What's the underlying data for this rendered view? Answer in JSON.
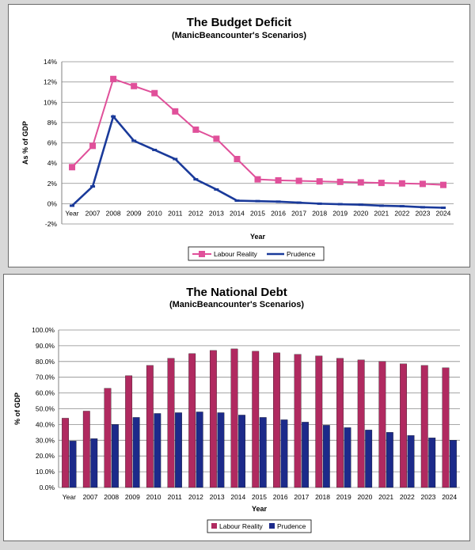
{
  "chart_data": [
    {
      "type": "line",
      "title": "The Budget Deficit",
      "subtitle": "(ManicBeancounter's Scenarios)",
      "xlabel": "Year",
      "ylabel": "As % of GDP",
      "categories": [
        "Year",
        "2007",
        "2008",
        "2009",
        "2010",
        "2011",
        "2012",
        "2013",
        "2014",
        "2015",
        "2016",
        "2017",
        "2018",
        "2019",
        "2020",
        "2021",
        "2022",
        "2023",
        "2024"
      ],
      "y_ticks": [
        "-2%",
        "0%",
        "2%",
        "4%",
        "6%",
        "8%",
        "10%",
        "12%",
        "14%"
      ],
      "ylim": [
        -2,
        14
      ],
      "grid": true,
      "legend_position": "bottom",
      "series": [
        {
          "name": "Labour Reality",
          "color": "#e0509a",
          "marker": "square",
          "values": [
            3.6,
            5.7,
            12.3,
            11.6,
            10.9,
            9.1,
            7.3,
            6.4,
            4.4,
            2.4,
            2.3,
            2.25,
            2.2,
            2.15,
            2.1,
            2.05,
            2.0,
            1.95,
            1.85
          ]
        },
        {
          "name": "Prudence",
          "color": "#1a3a9a",
          "marker": "dash",
          "values": [
            -0.2,
            1.7,
            8.6,
            6.2,
            5.3,
            4.4,
            2.4,
            1.4,
            0.3,
            0.25,
            0.2,
            0.1,
            0.0,
            -0.05,
            -0.1,
            -0.2,
            -0.25,
            -0.35,
            -0.4
          ]
        }
      ]
    },
    {
      "type": "bar",
      "title": "The National Debt",
      "subtitle": "(ManicBeancounter's Scenarios)",
      "xlabel": "Year",
      "ylabel": "% of GDP",
      "categories": [
        "Year",
        "2007",
        "2008",
        "2009",
        "2010",
        "2011",
        "2012",
        "2013",
        "2014",
        "2015",
        "2016",
        "2017",
        "2018",
        "2019",
        "2020",
        "2021",
        "2022",
        "2023",
        "2024"
      ],
      "y_ticks": [
        "0.0%",
        "10.0%",
        "20.0%",
        "30.0%",
        "40.0%",
        "50.0%",
        "60.0%",
        "70.0%",
        "80.0%",
        "90.0%",
        "100.0%"
      ],
      "ylim": [
        0,
        100
      ],
      "grid": true,
      "legend_position": "bottom",
      "series": [
        {
          "name": "Labour Reality",
          "color": "#b02a60",
          "values": [
            44,
            48.5,
            63,
            71,
            77.5,
            82,
            85,
            87,
            88,
            86.5,
            85.5,
            84.5,
            83.5,
            82,
            81,
            80,
            78.5,
            77.5,
            76
          ]
        },
        {
          "name": "Prudence",
          "color": "#1c2a8a",
          "values": [
            29.5,
            31,
            40,
            44.5,
            47,
            47.5,
            48,
            47.5,
            46,
            44.5,
            43,
            41.5,
            39.5,
            38,
            36.5,
            35,
            33,
            31.5,
            30
          ]
        }
      ]
    }
  ]
}
